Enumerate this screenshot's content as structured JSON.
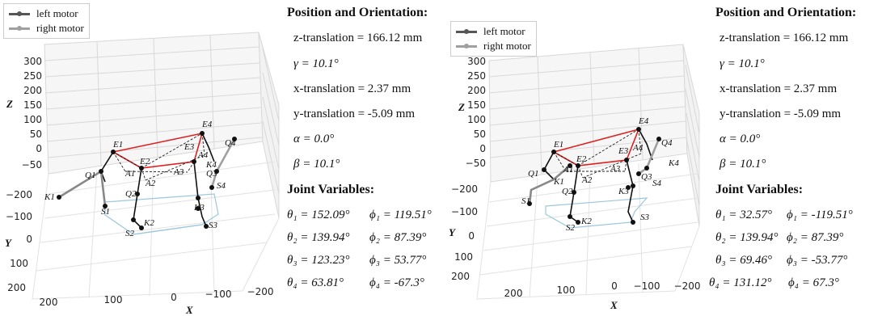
{
  "legend": {
    "left_motor": "left motor",
    "right_motor": "right motor",
    "left_color": "#555555",
    "right_color": "#a0a0a0"
  },
  "axes": {
    "z_label": "Z",
    "y_label": "Y",
    "x_label": "X",
    "z_ticks": [
      "300",
      "250",
      "200",
      "150",
      "100",
      "50",
      "0",
      "−50"
    ],
    "y_ticks": [
      "−200",
      "−100",
      "0",
      "100",
      "200"
    ],
    "x_ticks": [
      "200",
      "100",
      "0",
      "−100",
      "−200"
    ]
  },
  "colors": {
    "platform": "#e02020",
    "base": "#9cc7dd",
    "link": "#111111"
  },
  "points": [
    "E1",
    "E2",
    "E3",
    "E4",
    "A1",
    "A2",
    "A3",
    "A4",
    "Q1",
    "Q2",
    "Q3",
    "Q4",
    "K1",
    "K2",
    "K3",
    "K4",
    "S1",
    "S2",
    "S3",
    "S4"
  ],
  "panels": [
    {
      "pose_title": "Position and Orientation:",
      "z_translation": "z-translation = 166.12 mm",
      "gamma": "γ = 10.1°",
      "x_translation": "x-translation = 2.37 mm",
      "y_translation": "y-translation = -5.09 mm",
      "alpha": "α = 0.0°",
      "beta": "β = 10.1°",
      "joint_title": "Joint Variables:",
      "joints": [
        {
          "theta": "θ₁ = 152.09°",
          "phi": "ϕ₁ = 119.51°"
        },
        {
          "theta": "θ₂ = 139.94°",
          "phi": "ϕ₂ = 87.39°"
        },
        {
          "theta": "θ₃ = 123.23°",
          "phi": "ϕ₃ = 53.77°"
        },
        {
          "theta": "θ₄ = 63.81°",
          "phi": "ϕ₄ = -67.3°"
        }
      ]
    },
    {
      "pose_title": "Position and Orientation:",
      "z_translation": "z-translation = 166.12 mm",
      "gamma": "γ = 10.1°",
      "x_translation": "x-translation = 2.37 mm",
      "y_translation": "y-translation = -5.09 mm",
      "alpha": "α = 0.0°",
      "beta": "β = 10.1°",
      "joint_title": "Joint Variables:",
      "joints": [
        {
          "theta": "θ₁ = 32.57°",
          "phi": "ϕ₁ = -119.51°"
        },
        {
          "theta": "θ₂ = 139.94°",
          "phi": "ϕ₂ = 87.39°"
        },
        {
          "theta": "θ₃ = 69.46°",
          "phi": "ϕ₃ = -53.77°"
        },
        {
          "theta": "θ₄ = 131.12°",
          "phi": "ϕ₄ = 67.3°"
        }
      ]
    }
  ]
}
